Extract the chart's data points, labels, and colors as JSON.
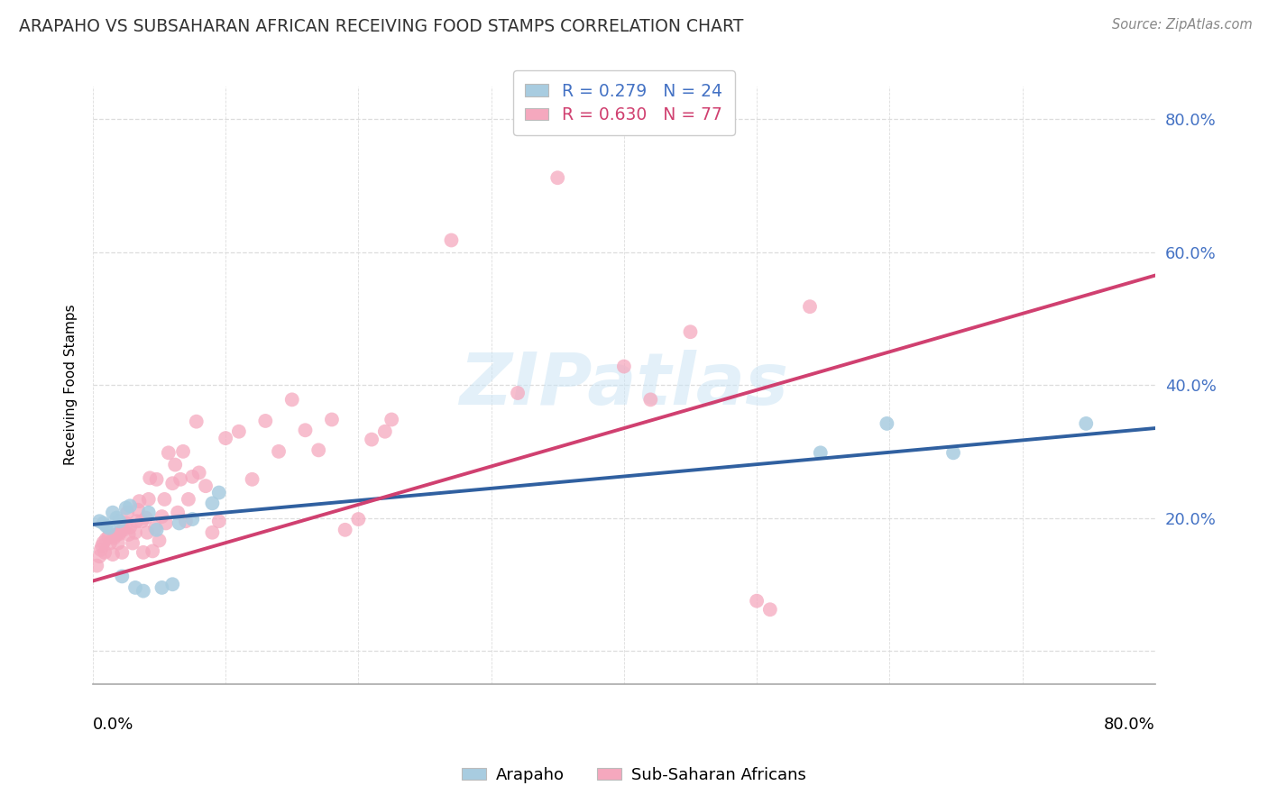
{
  "title": "ARAPAHO VS SUBSAHARAN AFRICAN RECEIVING FOOD STAMPS CORRELATION CHART",
  "source": "Source: ZipAtlas.com",
  "ylabel": "Receiving Food Stamps",
  "xlim": [
    0.0,
    0.8
  ],
  "ylim": [
    -0.05,
    0.85
  ],
  "ytick_positions": [
    0.0,
    0.2,
    0.4,
    0.6,
    0.8
  ],
  "ytick_labels": [
    "",
    "20.0%",
    "40.0%",
    "60.0%",
    "80.0%"
  ],
  "legend_blue_text": "R = 0.279   N = 24",
  "legend_pink_text": "R = 0.630   N = 77",
  "legend_label_blue": "Arapaho",
  "legend_label_pink": "Sub-Saharan Africans",
  "blue_scatter_color": "#a8cce0",
  "pink_scatter_color": "#f5a8be",
  "blue_line_color": "#3060a0",
  "pink_line_color": "#d04070",
  "blue_line_x0": 0.0,
  "blue_line_y0": 0.19,
  "blue_line_x1": 0.8,
  "blue_line_y1": 0.335,
  "pink_line_x0": 0.0,
  "pink_line_y0": 0.105,
  "pink_line_x1": 0.8,
  "pink_line_y1": 0.565,
  "arapaho_x": [
    0.005,
    0.008,
    0.01,
    0.012,
    0.015,
    0.018,
    0.02,
    0.022,
    0.025,
    0.028,
    0.032,
    0.038,
    0.042,
    0.048,
    0.052,
    0.06,
    0.065,
    0.075,
    0.09,
    0.095,
    0.548,
    0.598,
    0.648,
    0.748
  ],
  "arapaho_y": [
    0.195,
    0.192,
    0.188,
    0.185,
    0.208,
    0.2,
    0.195,
    0.112,
    0.215,
    0.218,
    0.095,
    0.09,
    0.208,
    0.182,
    0.095,
    0.1,
    0.192,
    0.198,
    0.222,
    0.238,
    0.298,
    0.342,
    0.298,
    0.342
  ],
  "subsaharan_x": [
    0.003,
    0.005,
    0.006,
    0.007,
    0.008,
    0.009,
    0.01,
    0.012,
    0.013,
    0.015,
    0.016,
    0.017,
    0.018,
    0.019,
    0.02,
    0.021,
    0.022,
    0.023,
    0.025,
    0.026,
    0.027,
    0.028,
    0.03,
    0.032,
    0.033,
    0.034,
    0.035,
    0.037,
    0.038,
    0.04,
    0.041,
    0.042,
    0.043,
    0.045,
    0.047,
    0.048,
    0.05,
    0.052,
    0.054,
    0.055,
    0.057,
    0.06,
    0.062,
    0.064,
    0.066,
    0.068,
    0.07,
    0.072,
    0.075,
    0.078,
    0.08,
    0.085,
    0.09,
    0.095,
    0.1,
    0.11,
    0.12,
    0.13,
    0.14,
    0.15,
    0.16,
    0.17,
    0.18,
    0.19,
    0.2,
    0.21,
    0.22,
    0.225,
    0.35,
    0.27,
    0.5,
    0.51,
    0.32,
    0.4,
    0.42,
    0.45,
    0.54
  ],
  "subsaharan_y": [
    0.128,
    0.142,
    0.152,
    0.158,
    0.163,
    0.148,
    0.168,
    0.172,
    0.162,
    0.145,
    0.17,
    0.174,
    0.175,
    0.162,
    0.176,
    0.18,
    0.148,
    0.182,
    0.192,
    0.208,
    0.175,
    0.186,
    0.162,
    0.178,
    0.195,
    0.212,
    0.225,
    0.195,
    0.148,
    0.2,
    0.178,
    0.228,
    0.26,
    0.15,
    0.185,
    0.258,
    0.166,
    0.202,
    0.228,
    0.192,
    0.298,
    0.252,
    0.28,
    0.208,
    0.258,
    0.3,
    0.195,
    0.228,
    0.262,
    0.345,
    0.268,
    0.248,
    0.178,
    0.195,
    0.32,
    0.33,
    0.258,
    0.346,
    0.3,
    0.378,
    0.332,
    0.302,
    0.348,
    0.182,
    0.198,
    0.318,
    0.33,
    0.348,
    0.712,
    0.618,
    0.075,
    0.062,
    0.388,
    0.428,
    0.378,
    0.48,
    0.518
  ]
}
